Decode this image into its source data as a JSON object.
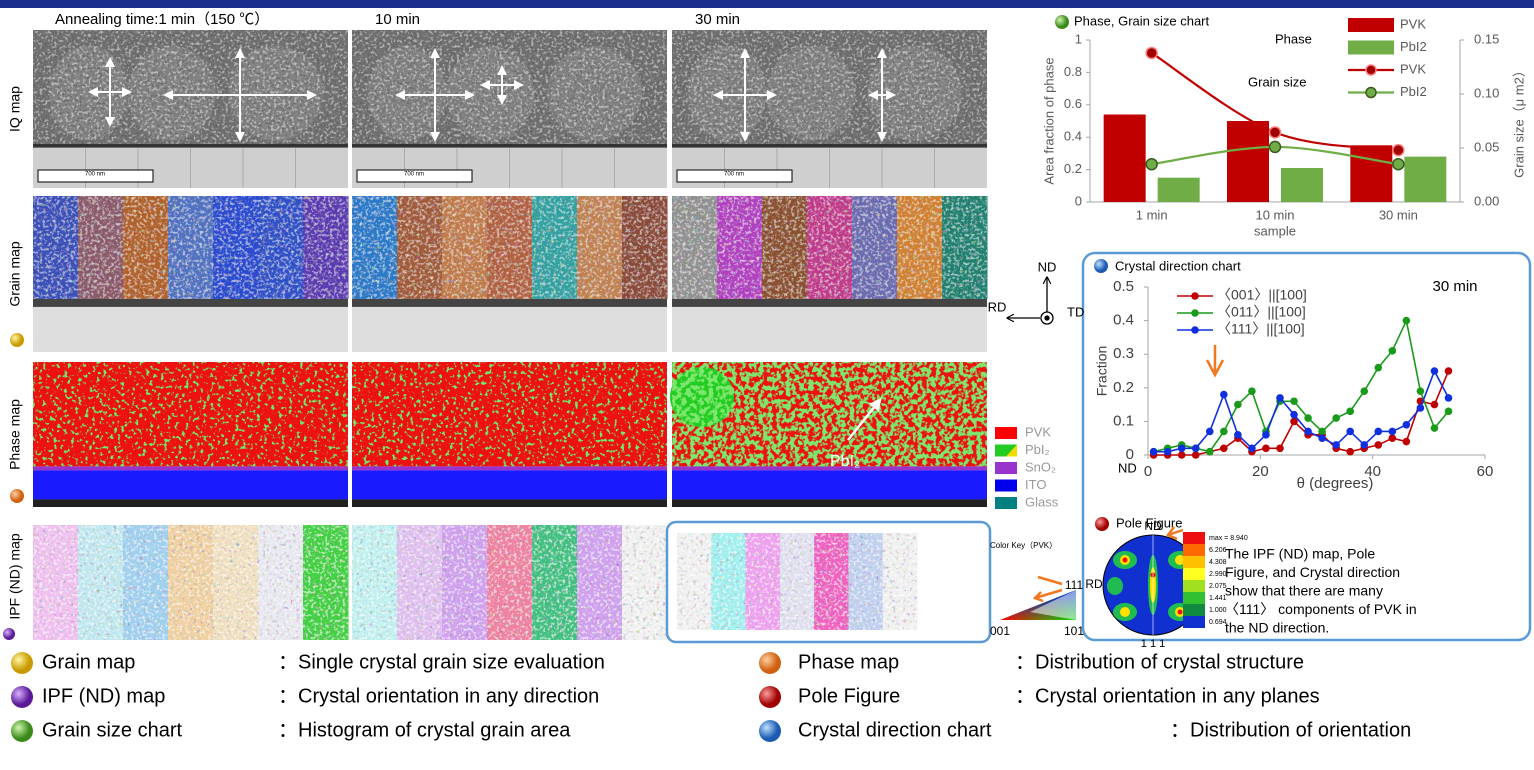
{
  "header": {
    "col_labels": [
      "Annealing time:1 min（150 ℃）",
      "10 min",
      "30 min"
    ]
  },
  "row_labels": [
    "IQ map",
    "Grain map",
    "Phase map",
    "IPF (ND) map"
  ],
  "scale_bar": "700 nm",
  "axes_symbol": {
    "nd": "ND",
    "rd": "RD",
    "td": "TD"
  },
  "phase_legend": [
    {
      "label": "PVK",
      "color": "#ff0000"
    },
    {
      "label": "PbI₂",
      "color": "#22cc22"
    },
    {
      "label": "SnO₂",
      "color": "#9933cc"
    },
    {
      "label": "ITO",
      "color": "#0000ee"
    },
    {
      "label": "Glass",
      "color": "#008080"
    }
  ],
  "phase_annotation": "PbI₂",
  "color_key": {
    "title": "Color Key（PVK）",
    "corners": [
      "111",
      "001",
      "101"
    ]
  },
  "pole_figure": {
    "title": "Pole Figure",
    "nd": "ND",
    "rd": "RD",
    "plane": "1 1 1",
    "scale": [
      "max = 8.940",
      "6.206",
      "4.308",
      "2.990",
      "2.075",
      "1.441",
      "1.000",
      "0.694"
    ]
  },
  "description": [
    "The IPF (ND) map, Pole",
    "Figure, and Crystal direction",
    "show that there are many",
    "〈111〉 components of PVK in",
    "the ND direction."
  ],
  "legend": [
    {
      "term": "Grain map",
      "description": "：Single crystal grain size evaluation"
    },
    {
      "term": "Phase map",
      "description": "：Distribution of crystal structure"
    },
    {
      "term": "IPF (ND) map",
      "description": "：Crystal orientation in any direction"
    },
    {
      "term": "Pole Figure",
      "description": "：Crystal orientation in any planes"
    },
    {
      "term": "Grain size chart",
      "description": "：Histogram of crystal grain area"
    },
    {
      "term": "Crystal direction chart",
      "description": "：Distribution of orientation"
    }
  ],
  "chart_data": [
    {
      "type": "combo",
      "title": "Phase, Grain size chart",
      "x_label": "sample",
      "y_label": "Area fraction of phase",
      "y2_label": "Grain size（μ m2）",
      "categories": [
        "1 min",
        "10 min",
        "30 min"
      ],
      "ylim": [
        0,
        1
      ],
      "yticks": [
        0,
        0.2,
        0.4,
        0.6,
        0.8,
        1
      ],
      "y2lim": [
        0,
        0.15
      ],
      "y2ticks": [
        {
          "value": 0,
          "label": "0.00"
        },
        0.05,
        {
          "value": 0.1,
          "label": "0.10"
        },
        0.15
      ],
      "legend_groups": [
        "Phase",
        "Grain size"
      ],
      "series": [
        {
          "name": "PVK",
          "type": "bar",
          "color": "#c00000",
          "values": [
            0.54,
            0.5,
            0.35
          ]
        },
        {
          "name": "PbI2",
          "type": "bar",
          "color": "#70ad47",
          "values": [
            0.15,
            0.21,
            0.28
          ]
        },
        {
          "name": "PVK",
          "type": "line",
          "axis": "y2",
          "color": "#c00000",
          "values": [
            0.138,
            0.0645,
            0.048
          ]
        },
        {
          "name": "PbI2",
          "type": "line",
          "axis": "y2",
          "color": "#70ad47",
          "values": [
            0.035,
            0.051,
            0.035
          ]
        }
      ]
    },
    {
      "type": "line",
      "title": "Crystal direction chart",
      "annotation": "30 min",
      "origin_label": "ND",
      "x_label": "θ (degrees)",
      "y_label": "Fraction",
      "xlim": [
        0,
        60
      ],
      "xticks": [
        0,
        20,
        40,
        60
      ],
      "ylim": [
        0,
        0.5
      ],
      "yticks": [
        0,
        0.1,
        0.2,
        0.3,
        0.4,
        0.5
      ],
      "x": [
        1,
        3.5,
        6,
        8.5,
        11,
        13.5,
        16,
        18.5,
        21,
        23.5,
        26,
        28.5,
        31,
        33.5,
        36,
        38.5,
        41,
        43.5,
        46,
        48.5,
        51,
        53.5
      ],
      "series": [
        {
          "name": "〈001〉||[100]",
          "color": "#c00000",
          "values": [
            0,
            0,
            0,
            0,
            0.01,
            0.02,
            0.05,
            0.01,
            0.02,
            0.02,
            0.1,
            0.06,
            0.06,
            0.02,
            0.01,
            0.02,
            0.03,
            0.05,
            0.04,
            0.16,
            0.15,
            0.25
          ]
        },
        {
          "name": "〈011〉||[100]",
          "color": "#1a9a1a",
          "values": [
            0.01,
            0.02,
            0.03,
            0.02,
            0.01,
            0.07,
            0.15,
            0.19,
            0.07,
            0.16,
            0.16,
            0.11,
            0.07,
            0.11,
            0.13,
            0.19,
            0.26,
            0.31,
            0.4,
            0.19,
            0.08,
            0.13
          ]
        },
        {
          "name": "〈111〉||[100]",
          "color": "#1030e0",
          "values": [
            0.01,
            0.01,
            0.02,
            0.02,
            0.07,
            0.18,
            0.06,
            0.02,
            0.06,
            0.17,
            0.12,
            0.07,
            0.05,
            0.03,
            0.07,
            0.03,
            0.07,
            0.07,
            0.09,
            0.14,
            0.25,
            0.17
          ]
        }
      ]
    }
  ]
}
